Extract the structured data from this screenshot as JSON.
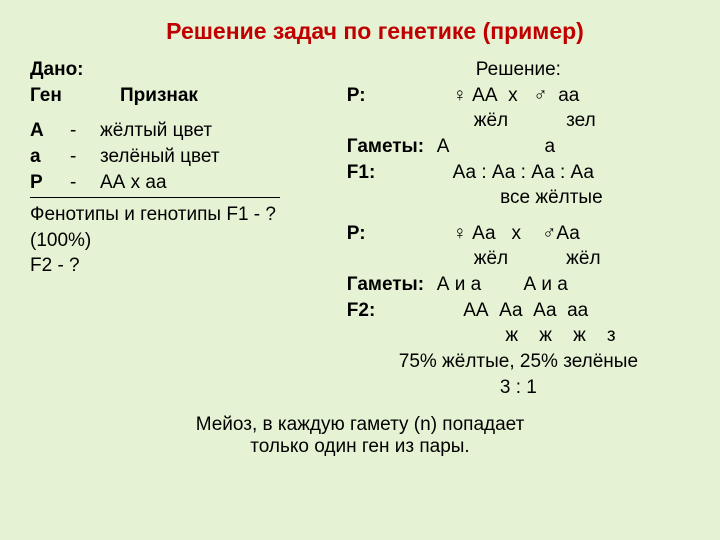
{
  "colors": {
    "background": "#e6f2d4",
    "title": "#c00000",
    "text": "#000000"
  },
  "typography": {
    "title_fontsize": 23,
    "body_fontsize": 19,
    "footer_fontsize": 19,
    "font_family": "Arial"
  },
  "title": "Решение задач по генетике (пример)",
  "given": {
    "header1": "Дано:",
    "header2_gene": "Ген",
    "header2_trait": "Признак",
    "rows": [
      {
        "sym": "А",
        "dash": "-",
        "trait": " жёлтый цвет"
      },
      {
        "sym": "а",
        "dash": "-",
        "trait": " зелёный цвет"
      },
      {
        "sym": "Р",
        "dash": "-",
        "trait": "АА х аа"
      }
    ],
    "question1": "Фенотипы и генотипы F1 - ?",
    "question2": "(100%)",
    "question3": "F2 - ?"
  },
  "solution": {
    "header": "Решение:",
    "p1_label": "Р:",
    "p1_cross": "   ♀ АА  х   ♂  аа",
    "p1_pheno": "       жёл           зел",
    "g1_label": "Гаметы:",
    "g1_val": "А                  а",
    "f1_label": "F1:",
    "f1_val": "   Аа : Аа : Аа : Аа",
    "f1_pheno": "            все жёлтые",
    "p2_label": "Р:",
    "p2_cross": "   ♀ Аа   х    ♂Аа",
    "p2_pheno": "       жёл           жёл",
    "g2_label": "Гаметы:",
    "g2_val": "А и а        А и а",
    "f2_label": "F2:",
    "f2_val": "     АА  Аа  Аа  аа",
    "f2_pheno": "             ж    ж    ж    з",
    "ratio1": "75% жёлтые, 25% зелёные",
    "ratio2": "3 : 1"
  },
  "footer": {
    "line1": "Мейоз, в каждую гамету (n) попадает",
    "line2": "только один ген из пары."
  }
}
